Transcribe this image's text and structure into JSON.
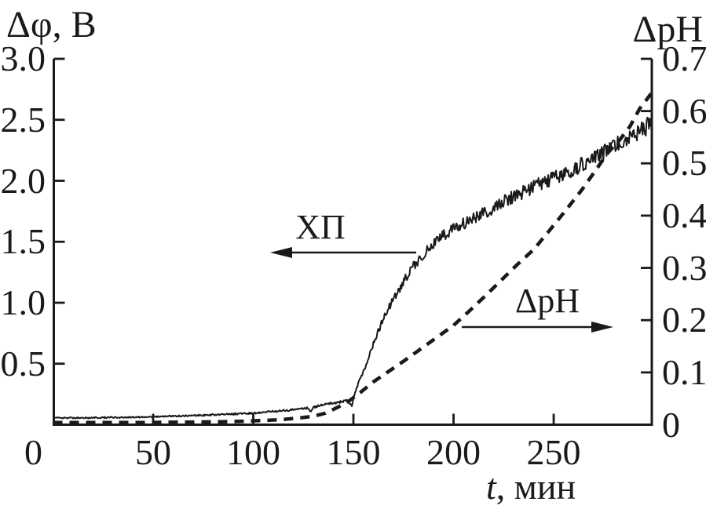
{
  "colors": {
    "ink": "#1a1a1a",
    "background": "#ffffff"
  },
  "chart_data": {
    "type": "line",
    "title": "",
    "grid": false,
    "x_axis": {
      "title": "t, мин",
      "title_var": "t",
      "title_unit": ", мин",
      "range": [
        0,
        299
      ],
      "tick_values": [
        50,
        100,
        150,
        200,
        250
      ],
      "tick_labels": [
        "50",
        "100",
        "150",
        "200",
        "250"
      ],
      "origin_label": "0"
    },
    "left_axis": {
      "title": "Δφ, В",
      "range": [
        0,
        3.0
      ],
      "tick_values": [
        3.0,
        2.5,
        2.0,
        1.5,
        1.0,
        0.5
      ],
      "tick_labels": [
        "3.0",
        "2.5",
        "2.0",
        "1.5",
        "1.0",
        "0.5"
      ]
    },
    "right_axis": {
      "title": "ΔpH",
      "range": [
        0,
        0.7
      ],
      "tick_values": [
        0.7,
        0.6,
        0.5,
        0.4,
        0.3,
        0.2,
        0.1,
        0
      ],
      "tick_labels": [
        "0.7",
        "0.6",
        "0.5",
        "0.4",
        "0.3",
        "0.2",
        "0.1",
        "0"
      ]
    },
    "series": [
      {
        "name": "ХП",
        "axis": "left",
        "style": "solid",
        "noisy": true,
        "points": [
          [
            0,
            0.055
          ],
          [
            15,
            0.056
          ],
          [
            30,
            0.059
          ],
          [
            45,
            0.063
          ],
          [
            60,
            0.07
          ],
          [
            75,
            0.078
          ],
          [
            90,
            0.087
          ],
          [
            100,
            0.095
          ],
          [
            110,
            0.108
          ],
          [
            118,
            0.12
          ],
          [
            124,
            0.132
          ],
          [
            127,
            0.138
          ],
          [
            128.5,
            0.108
          ],
          [
            130,
            0.142
          ],
          [
            134,
            0.16
          ],
          [
            138,
            0.172
          ],
          [
            143,
            0.185
          ],
          [
            147,
            0.2
          ],
          [
            148.3,
            0.165
          ],
          [
            149.3,
            0.155
          ],
          [
            150.5,
            0.25
          ],
          [
            152,
            0.32
          ],
          [
            154,
            0.4
          ],
          [
            156,
            0.48
          ],
          [
            158,
            0.57
          ],
          [
            160,
            0.66
          ],
          [
            163,
            0.79
          ],
          [
            166,
            0.9
          ],
          [
            169,
            1.0
          ],
          [
            172,
            1.09
          ],
          [
            175,
            1.17
          ],
          [
            178,
            1.25
          ],
          [
            181,
            1.32
          ],
          [
            184,
            1.38
          ],
          [
            187,
            1.44
          ],
          [
            190,
            1.49
          ],
          [
            193,
            1.53
          ],
          [
            196,
            1.56
          ],
          [
            200,
            1.6
          ],
          [
            205,
            1.65
          ],
          [
            210,
            1.7
          ],
          [
            215,
            1.74
          ],
          [
            220,
            1.78
          ],
          [
            225,
            1.83
          ],
          [
            230,
            1.87
          ],
          [
            235,
            1.91
          ],
          [
            240,
            1.95
          ],
          [
            245,
            1.99
          ],
          [
            250,
            2.02
          ],
          [
            255,
            2.06
          ],
          [
            260,
            2.1
          ],
          [
            265,
            2.14
          ],
          [
            270,
            2.18
          ],
          [
            275,
            2.23
          ],
          [
            280,
            2.28
          ],
          [
            285,
            2.33
          ],
          [
            290,
            2.38
          ],
          [
            295,
            2.43
          ],
          [
            299,
            2.47
          ]
        ]
      },
      {
        "name": "ΔpH",
        "axis": "right",
        "style": "dashed",
        "noisy": false,
        "points": [
          [
            0,
            0.004
          ],
          [
            40,
            0.004
          ],
          [
            70,
            0.005
          ],
          [
            90,
            0.006
          ],
          [
            105,
            0.008
          ],
          [
            115,
            0.01
          ],
          [
            123,
            0.013
          ],
          [
            130,
            0.016
          ],
          [
            136,
            0.022
          ],
          [
            142,
            0.033
          ],
          [
            148,
            0.046
          ],
          [
            153,
            0.06
          ],
          [
            160,
            0.082
          ],
          [
            168,
            0.103
          ],
          [
            176,
            0.124
          ],
          [
            184,
            0.146
          ],
          [
            192,
            0.168
          ],
          [
            200,
            0.19
          ],
          [
            208,
            0.218
          ],
          [
            216,
            0.247
          ],
          [
            224,
            0.277
          ],
          [
            232,
            0.307
          ],
          [
            240,
            0.335
          ],
          [
            248,
            0.372
          ],
          [
            256,
            0.41
          ],
          [
            264,
            0.449
          ],
          [
            271,
            0.487
          ],
          [
            277,
            0.52
          ],
          [
            283,
            0.545
          ],
          [
            288,
            0.57
          ],
          [
            293,
            0.605
          ],
          [
            299,
            0.635
          ]
        ]
      }
    ],
    "annotations": [
      {
        "text": "ХП",
        "text_x": 408,
        "text_y": 290,
        "arrow_from": [
          530,
          322
        ],
        "arrow_to": [
          344,
          322
        ]
      },
      {
        "text": "ΔpH",
        "text_x": 697,
        "text_y": 384,
        "arrow_from": [
          588,
          417
        ],
        "arrow_to": [
          781,
          417
        ]
      }
    ]
  }
}
